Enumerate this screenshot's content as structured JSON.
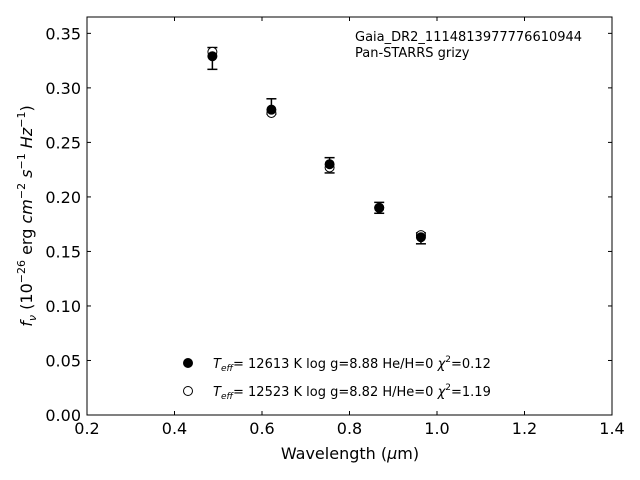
{
  "chart_data": {
    "type": "scatter",
    "title": "",
    "annotation_lines": [
      "Gaia_DR2_1114813977776610944",
      "Pan-STARRS grizy"
    ],
    "xlabel": {
      "base": "Wavelength (",
      "mu": "μ",
      "rest": "m)"
    },
    "ylabel": {
      "sym": "f",
      "sub": "ν",
      "open": " (10",
      "exp1": "−26",
      "mid1": " erg ",
      "cm": "cm",
      "exp2": "−2",
      "s": " s",
      "exp3": "−1",
      "hz": " Hz",
      "exp4": "−1",
      "close": ")"
    },
    "xlim": [
      0.2,
      1.4
    ],
    "ylim": [
      0.0,
      0.365
    ],
    "xticks": [
      0.2,
      0.4,
      0.6,
      0.8,
      1.0,
      1.2,
      1.4
    ],
    "xtick_labels": [
      "0.2",
      "0.4",
      "0.6",
      "0.8",
      "1.0",
      "1.2",
      "1.4"
    ],
    "yticks": [
      0.0,
      0.05,
      0.1,
      0.15,
      0.2,
      0.25,
      0.3,
      0.35
    ],
    "ytick_labels": [
      "0.00",
      "0.05",
      "0.10",
      "0.15",
      "0.20",
      "0.25",
      "0.30",
      "0.35"
    ],
    "grid": false,
    "legend_placement": "lower-center",
    "observed": {
      "x": [
        0.4866,
        0.6215,
        0.7545,
        0.8679,
        0.9633
      ],
      "y": [
        0.327,
        0.283,
        0.229,
        0.19,
        0.162
      ],
      "yerr": [
        0.01,
        0.007,
        0.007,
        0.005,
        0.005
      ]
    },
    "series": [
      {
        "marker": "filled",
        "legend": {
          "t": "T",
          "sub": "eff",
          "text": "= 12613 K  log g=8.88  He/H=0  ",
          "chi": "χ",
          "chi_exp": "2",
          "chi_val": "=0.12"
        },
        "x": [
          0.4866,
          0.6215,
          0.7545,
          0.8679,
          0.9633
        ],
        "y": [
          0.329,
          0.28,
          0.23,
          0.19,
          0.163
        ]
      },
      {
        "marker": "open",
        "legend": {
          "t": "T",
          "sub": "eff",
          "text": "= 12523 K  log g=8.82  H/He=0  ",
          "chi": "χ",
          "chi_exp": "2",
          "chi_val": "=1.19"
        },
        "x": [
          0.4866,
          0.6215,
          0.7545,
          0.8679,
          0.9633
        ],
        "y": [
          0.333,
          0.277,
          0.227,
          0.19,
          0.165
        ]
      }
    ]
  }
}
